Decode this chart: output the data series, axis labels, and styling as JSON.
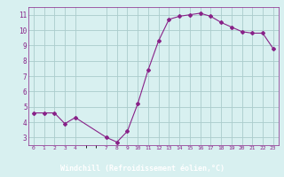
{
  "x": [
    0,
    1,
    2,
    3,
    4,
    7,
    8,
    9,
    10,
    11,
    12,
    13,
    14,
    15,
    16,
    17,
    18,
    19,
    20,
    21,
    22,
    23
  ],
  "y": [
    4.6,
    4.6,
    4.6,
    3.9,
    4.3,
    3.0,
    2.7,
    3.4,
    5.2,
    7.4,
    9.3,
    10.7,
    10.9,
    11.0,
    11.1,
    10.9,
    10.5,
    10.2,
    9.9,
    9.8,
    9.8,
    8.8
  ],
  "line_color": "#882288",
  "marker": "D",
  "marker_size": 2,
  "bg_color": "#d8f0f0",
  "grid_color": "#aacccc",
  "xlabel": "Windchill (Refroidissement éolien,°C)",
  "xlabel_bg": "#882288",
  "xlabel_color": "#ffffff",
  "ylabel_ticks": [
    3,
    4,
    5,
    6,
    7,
    8,
    9,
    10,
    11
  ],
  "xticks": [
    0,
    1,
    2,
    3,
    4,
    7,
    8,
    9,
    10,
    11,
    12,
    13,
    14,
    15,
    16,
    17,
    18,
    19,
    20,
    21,
    22,
    23
  ],
  "xlim": [
    -0.5,
    23.5
  ],
  "ylim": [
    2.5,
    11.5
  ],
  "spine_color": "#882288"
}
